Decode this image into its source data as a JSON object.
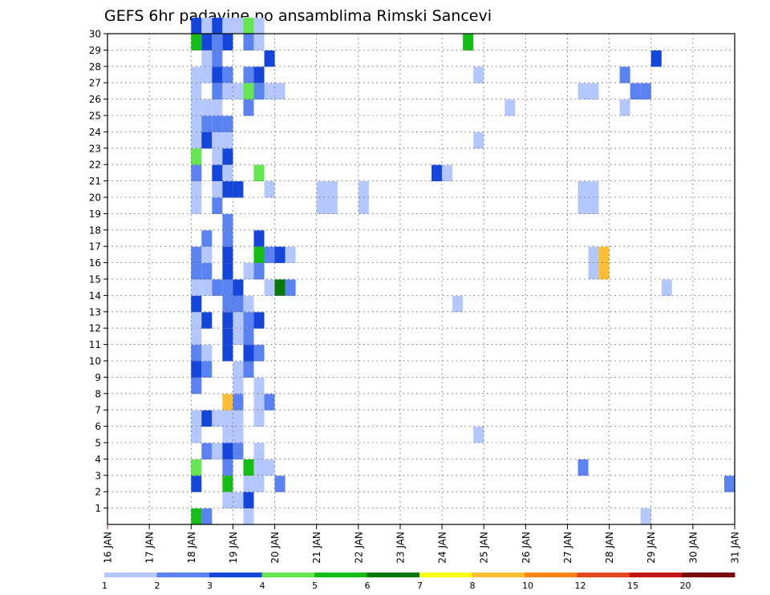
{
  "chart_data": {
    "type": "heatmap",
    "title": "GEFS 6hr padavine po ansamblima Rimski Sancevi",
    "x_ticks": [
      "16 JAN",
      "17 JAN",
      "18 JAN",
      "19 JAN",
      "20 JAN",
      "21 JAN",
      "22 JAN",
      "23 JAN",
      "24 JAN",
      "25 JAN",
      "26 JAN",
      "27 JAN",
      "28 JAN",
      "29 JAN",
      "30 JAN",
      "31 JAN"
    ],
    "y_ticks": [
      "1",
      "2",
      "3",
      "4",
      "5",
      "6",
      "7",
      "8",
      "9",
      "10",
      "11",
      "12",
      "13",
      "14",
      "15",
      "16",
      "17",
      "18",
      "19",
      "20",
      "21",
      "22",
      "23",
      "24",
      "25",
      "26",
      "27",
      "28",
      "29",
      "30"
    ],
    "xlim": [
      "16 JAN",
      "31 JAN"
    ],
    "ylim": [
      0,
      30
    ],
    "grid": true,
    "x_step_hours": 6,
    "colorbar": {
      "bounds": [
        "1",
        "2",
        "3",
        "4",
        "5",
        "6",
        "7",
        "8",
        "10",
        "12",
        "15",
        "20"
      ],
      "colors": [
        "#b4c8ff",
        "#5a82f0",
        "#1446dc",
        "#64e650",
        "#14be14",
        "#087808",
        "#ffff14",
        "#ffbe32",
        "#ff8214",
        "#e6461e",
        "#c31414",
        "#780a0a"
      ]
    },
    "cells": [
      {
        "t": "18.00",
        "m": 30,
        "c": 2
      },
      {
        "t": "18.25",
        "m": 30,
        "c": 0
      },
      {
        "t": "18.50",
        "m": 30,
        "c": 2
      },
      {
        "t": "18.75",
        "m": 30,
        "c": 0
      },
      {
        "t": "19.00",
        "m": 30,
        "c": 0
      },
      {
        "t": "19.25",
        "m": 30,
        "c": 3
      },
      {
        "t": "19.50",
        "m": 30,
        "c": 0
      },
      {
        "t": "18.00",
        "m": 29,
        "c": 4
      },
      {
        "t": "18.25",
        "m": 29,
        "c": 2
      },
      {
        "t": "18.75",
        "m": 29,
        "c": 2
      },
      {
        "t": "18.50",
        "m": 29,
        "c": 1
      },
      {
        "t": "19.25",
        "m": 29,
        "c": 1
      },
      {
        "t": "19.50",
        "m": 29,
        "c": 0
      },
      {
        "t": "24.50",
        "m": 29,
        "c": 4
      },
      {
        "t": "18.25",
        "m": 28,
        "c": 0
      },
      {
        "t": "18.50",
        "m": 28,
        "c": 1
      },
      {
        "t": "19.75",
        "m": 28,
        "c": 2
      },
      {
        "t": "29.00",
        "m": 28,
        "c": 2
      },
      {
        "t": "18.00",
        "m": 27,
        "c": 0
      },
      {
        "t": "18.25",
        "m": 27,
        "c": 0
      },
      {
        "t": "18.50",
        "m": 27,
        "c": 2
      },
      {
        "t": "18.75",
        "m": 27,
        "c": 1
      },
      {
        "t": "19.25",
        "m": 27,
        "c": 1
      },
      {
        "t": "19.50",
        "m": 27,
        "c": 2
      },
      {
        "t": "24.75",
        "m": 27,
        "c": 0
      },
      {
        "t": "28.25",
        "m": 27,
        "c": 1
      },
      {
        "t": "18.00",
        "m": 26,
        "c": 0
      },
      {
        "t": "18.50",
        "m": 26,
        "c": 1
      },
      {
        "t": "18.75",
        "m": 26,
        "c": 0
      },
      {
        "t": "19.00",
        "m": 26,
        "c": 0
      },
      {
        "t": "19.25",
        "m": 26,
        "c": 3
      },
      {
        "t": "19.50",
        "m": 26,
        "c": 1
      },
      {
        "t": "19.75",
        "m": 26,
        "c": 0
      },
      {
        "t": "20.00",
        "m": 26,
        "c": 0
      },
      {
        "t": "27.25",
        "m": 26,
        "c": 0
      },
      {
        "t": "27.50",
        "m": 26,
        "c": 0
      },
      {
        "t": "28.50",
        "m": 26,
        "c": 1
      },
      {
        "t": "28.75",
        "m": 26,
        "c": 1
      },
      {
        "t": "18.00",
        "m": 25,
        "c": 0
      },
      {
        "t": "18.25",
        "m": 25,
        "c": 0
      },
      {
        "t": "18.50",
        "m": 25,
        "c": 0
      },
      {
        "t": "19.25",
        "m": 25,
        "c": 1
      },
      {
        "t": "25.50",
        "m": 25,
        "c": 0
      },
      {
        "t": "28.25",
        "m": 25,
        "c": 0
      },
      {
        "t": "18.00",
        "m": 24,
        "c": 0
      },
      {
        "t": "18.25",
        "m": 24,
        "c": 1
      },
      {
        "t": "18.50",
        "m": 24,
        "c": 1
      },
      {
        "t": "18.75",
        "m": 24,
        "c": 1
      },
      {
        "t": "18.00",
        "m": 23,
        "c": 0
      },
      {
        "t": "18.25",
        "m": 23,
        "c": 2
      },
      {
        "t": "18.50",
        "m": 23,
        "c": 0
      },
      {
        "t": "18.75",
        "m": 23,
        "c": 0
      },
      {
        "t": "24.75",
        "m": 23,
        "c": 0
      },
      {
        "t": "18.00",
        "m": 22,
        "c": 3
      },
      {
        "t": "18.50",
        "m": 22,
        "c": 0
      },
      {
        "t": "18.75",
        "m": 22,
        "c": 2
      },
      {
        "t": "18.00",
        "m": 21,
        "c": 1
      },
      {
        "t": "18.50",
        "m": 21,
        "c": 2
      },
      {
        "t": "18.75",
        "m": 21,
        "c": 0
      },
      {
        "t": "19.50",
        "m": 21,
        "c": 3
      },
      {
        "t": "23.75",
        "m": 21,
        "c": 2
      },
      {
        "t": "24.00",
        "m": 21,
        "c": 0
      },
      {
        "t": "18.00",
        "m": 20,
        "c": 0
      },
      {
        "t": "18.50",
        "m": 20,
        "c": 0
      },
      {
        "t": "18.75",
        "m": 20,
        "c": 2
      },
      {
        "t": "19.00",
        "m": 20,
        "c": 2
      },
      {
        "t": "19.75",
        "m": 20,
        "c": 0
      },
      {
        "t": "21.00",
        "m": 20,
        "c": 0
      },
      {
        "t": "21.25",
        "m": 20,
        "c": 0
      },
      {
        "t": "22.00",
        "m": 20,
        "c": 0
      },
      {
        "t": "27.25",
        "m": 20,
        "c": 0
      },
      {
        "t": "27.50",
        "m": 20,
        "c": 0
      },
      {
        "t": "18.00",
        "m": 19,
        "c": 0
      },
      {
        "t": "18.50",
        "m": 19,
        "c": 1
      },
      {
        "t": "27.25",
        "m": 19,
        "c": 0
      },
      {
        "t": "27.50",
        "m": 19,
        "c": 0
      },
      {
        "t": "21.00",
        "m": 19,
        "c": 0
      },
      {
        "t": "21.25",
        "m": 19,
        "c": 0
      },
      {
        "t": "22.00",
        "m": 19,
        "c": 0
      },
      {
        "t": "18.75",
        "m": 18,
        "c": 1
      },
      {
        "t": "18.75",
        "m": 17,
        "c": 1
      },
      {
        "t": "19.50",
        "m": 17,
        "c": 2
      },
      {
        "t": "18.25",
        "m": 17,
        "c": 1
      },
      {
        "t": "18.00",
        "m": 16,
        "c": 1
      },
      {
        "t": "18.25",
        "m": 16,
        "c": 0
      },
      {
        "t": "18.75",
        "m": 16,
        "c": 2
      },
      {
        "t": "19.50",
        "m": 16,
        "c": 4
      },
      {
        "t": "19.75",
        "m": 16,
        "c": 1
      },
      {
        "t": "20.00",
        "m": 16,
        "c": 2
      },
      {
        "t": "20.25",
        "m": 16,
        "c": 0
      },
      {
        "t": "27.50",
        "m": 16,
        "c": 0
      },
      {
        "t": "27.75",
        "m": 16,
        "c": 7
      },
      {
        "t": "18.00",
        "m": 15,
        "c": 1
      },
      {
        "t": "18.25",
        "m": 15,
        "c": 1
      },
      {
        "t": "18.75",
        "m": 15,
        "c": 2
      },
      {
        "t": "19.25",
        "m": 15,
        "c": 0
      },
      {
        "t": "19.50",
        "m": 15,
        "c": 1
      },
      {
        "t": "27.50",
        "m": 15,
        "c": 0
      },
      {
        "t": "27.75",
        "m": 15,
        "c": 7
      },
      {
        "t": "18.00",
        "m": 14,
        "c": 0
      },
      {
        "t": "18.25",
        "m": 14,
        "c": 0
      },
      {
        "t": "18.50",
        "m": 14,
        "c": 1
      },
      {
        "t": "18.75",
        "m": 14,
        "c": 1
      },
      {
        "t": "19.00",
        "m": 14,
        "c": 2
      },
      {
        "t": "19.75",
        "m": 14,
        "c": 0
      },
      {
        "t": "20.00",
        "m": 14,
        "c": 5
      },
      {
        "t": "20.25",
        "m": 14,
        "c": 1
      },
      {
        "t": "29.25",
        "m": 14,
        "c": 0
      },
      {
        "t": "18.00",
        "m": 13,
        "c": 2
      },
      {
        "t": "18.75",
        "m": 13,
        "c": 1
      },
      {
        "t": "19.00",
        "m": 13,
        "c": 1
      },
      {
        "t": "19.25",
        "m": 13,
        "c": 0
      },
      {
        "t": "24.25",
        "m": 13,
        "c": 0
      },
      {
        "t": "18.00",
        "m": 12,
        "c": 0
      },
      {
        "t": "18.25",
        "m": 12,
        "c": 2
      },
      {
        "t": "18.75",
        "m": 12,
        "c": 2
      },
      {
        "t": "19.00",
        "m": 12,
        "c": 0
      },
      {
        "t": "19.25",
        "m": 12,
        "c": 1
      },
      {
        "t": "19.50",
        "m": 12,
        "c": 2
      },
      {
        "t": "18.00",
        "m": 11,
        "c": 0
      },
      {
        "t": "18.75",
        "m": 11,
        "c": 2
      },
      {
        "t": "19.00",
        "m": 11,
        "c": 0
      },
      {
        "t": "19.25",
        "m": 11,
        "c": 1
      },
      {
        "t": "18.00",
        "m": 10,
        "c": 1
      },
      {
        "t": "18.25",
        "m": 10,
        "c": 0
      },
      {
        "t": "18.75",
        "m": 10,
        "c": 2
      },
      {
        "t": "19.25",
        "m": 10,
        "c": 2
      },
      {
        "t": "19.50",
        "m": 10,
        "c": 1
      },
      {
        "t": "18.00",
        "m": 9,
        "c": 2
      },
      {
        "t": "18.25",
        "m": 9,
        "c": 1
      },
      {
        "t": "19.00",
        "m": 9,
        "c": 0
      },
      {
        "t": "19.25",
        "m": 9,
        "c": 1
      },
      {
        "t": "18.00",
        "m": 8,
        "c": 1
      },
      {
        "t": "19.00",
        "m": 8,
        "c": 0
      },
      {
        "t": "19.50",
        "m": 8,
        "c": 0
      },
      {
        "t": "18.75",
        "m": 7,
        "c": 7
      },
      {
        "t": "19.00",
        "m": 7,
        "c": 1
      },
      {
        "t": "19.50",
        "m": 7,
        "c": 0
      },
      {
        "t": "19.75",
        "m": 7,
        "c": 1
      },
      {
        "t": "18.00",
        "m": 6,
        "c": 0
      },
      {
        "t": "18.25",
        "m": 6,
        "c": 2
      },
      {
        "t": "18.50",
        "m": 6,
        "c": 0
      },
      {
        "t": "18.75",
        "m": 6,
        "c": 0
      },
      {
        "t": "19.00",
        "m": 6,
        "c": 0
      },
      {
        "t": "19.50",
        "m": 6,
        "c": 0
      },
      {
        "t": "18.00",
        "m": 5,
        "c": 0
      },
      {
        "t": "18.75",
        "m": 5,
        "c": 0
      },
      {
        "t": "19.00",
        "m": 5,
        "c": 0
      },
      {
        "t": "24.75",
        "m": 5,
        "c": 0
      },
      {
        "t": "18.25",
        "m": 4,
        "c": 1
      },
      {
        "t": "18.50",
        "m": 4,
        "c": 0
      },
      {
        "t": "18.75",
        "m": 4,
        "c": 2
      },
      {
        "t": "19.00",
        "m": 4,
        "c": 1
      },
      {
        "t": "19.50",
        "m": 4,
        "c": 0
      },
      {
        "t": "18.00",
        "m": 3,
        "c": 3
      },
      {
        "t": "18.75",
        "m": 3,
        "c": 1
      },
      {
        "t": "19.25",
        "m": 3,
        "c": 4
      },
      {
        "t": "19.50",
        "m": 3,
        "c": 0
      },
      {
        "t": "19.75",
        "m": 3,
        "c": 0
      },
      {
        "t": "27.25",
        "m": 3,
        "c": 1
      },
      {
        "t": "18.00",
        "m": 2,
        "c": 2
      },
      {
        "t": "18.75",
        "m": 2,
        "c": 4
      },
      {
        "t": "19.25",
        "m": 2,
        "c": 0
      },
      {
        "t": "19.50",
        "m": 2,
        "c": 0
      },
      {
        "t": "20.00",
        "m": 2,
        "c": 1
      },
      {
        "t": "30.75",
        "m": 2,
        "c": 1
      },
      {
        "t": "18.75",
        "m": 1,
        "c": 0
      },
      {
        "t": "19.00",
        "m": 1,
        "c": 0
      },
      {
        "t": "19.25",
        "m": 1,
        "c": 2
      },
      {
        "t": "18.00",
        "m": 0,
        "c": 4
      },
      {
        "t": "18.25",
        "m": 0,
        "c": 1
      },
      {
        "t": "19.25",
        "m": 0,
        "c": 0
      },
      {
        "t": "28.75",
        "m": 0,
        "c": 0
      }
    ]
  }
}
